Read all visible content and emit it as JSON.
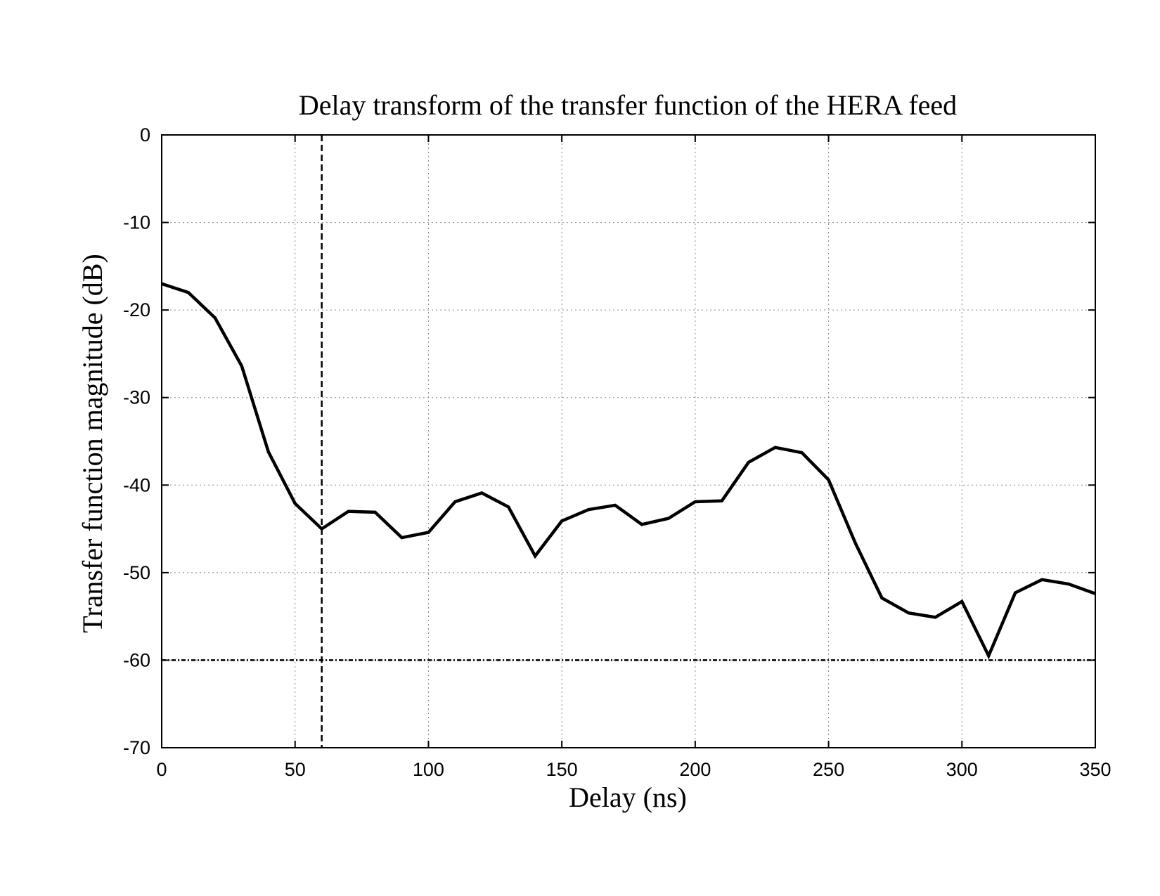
{
  "chart_data": {
    "type": "line",
    "title": "Delay transform of the transfer function of the HERA feed",
    "xlabel": "Delay (ns)",
    "ylabel": "Transfer function magnitude (dB)",
    "xlim": [
      0,
      350
    ],
    "ylim": [
      -70,
      0
    ],
    "xticks": [
      0,
      50,
      100,
      150,
      200,
      250,
      300,
      350
    ],
    "yticks": [
      0,
      -10,
      -20,
      -30,
      -40,
      -50,
      -60,
      -70
    ],
    "xtick_labels": [
      "0",
      "50",
      "100",
      "150",
      "200",
      "250",
      "300",
      "350"
    ],
    "ytick_labels": [
      "0",
      "-10",
      "-20",
      "-30",
      "-40",
      "-50",
      "-60",
      "-70"
    ],
    "grid": true,
    "series": [
      {
        "x": [
          0,
          10,
          20,
          30,
          40,
          50,
          60,
          70,
          80,
          90,
          100,
          110,
          120,
          130,
          140,
          150,
          160,
          170,
          180,
          190,
          200,
          210,
          220,
          230,
          240,
          250,
          260,
          270,
          280,
          290,
          300,
          310,
          320,
          330,
          340,
          350
        ],
        "y": [
          -17.0,
          -18.0,
          -20.9,
          -26.4,
          -36.2,
          -42.1,
          -45.0,
          -43.0,
          -43.1,
          -46.0,
          -45.4,
          -41.9,
          -40.9,
          -42.5,
          -48.1,
          -44.1,
          -42.8,
          -42.3,
          -44.5,
          -43.8,
          -41.9,
          -41.8,
          -37.4,
          -35.7,
          -36.3,
          -39.4,
          -46.6,
          -52.9,
          -54.6,
          -55.1,
          -53.3,
          -59.5,
          -52.3,
          -50.8,
          -51.3,
          -52.4
        ],
        "color": "#000000",
        "style": "solid"
      }
    ],
    "reference_lines": [
      {
        "orientation": "vertical",
        "x": 60,
        "style": "dashed",
        "color": "#000000"
      },
      {
        "orientation": "horizontal",
        "y": -60,
        "style": "dash-dot",
        "color": "#000000"
      }
    ]
  }
}
